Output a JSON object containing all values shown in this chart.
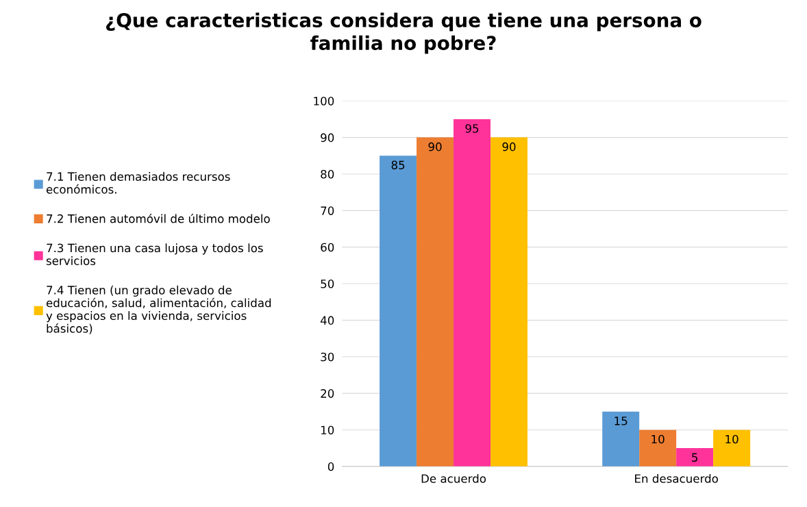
{
  "chart_data": {
    "type": "bar",
    "title": "¿Que caracteristicas considera que tiene una persona o familia no pobre?",
    "categories": [
      "De acuerdo",
      "En desacuerdo"
    ],
    "series": [
      {
        "name": "7.1 Tienen demasiados recursos económicos.",
        "color": "#5b9bd5",
        "values": [
          85,
          15
        ]
      },
      {
        "name": "7.2 Tienen automóvil de último modelo",
        "color": "#ed7d31",
        "values": [
          90,
          10
        ]
      },
      {
        "name": "7.3 Tienen una casa lujosa y todos los servicios",
        "color": "#ff3399",
        "values": [
          95,
          5
        ]
      },
      {
        "name": "7.4 Tienen (un grado elevado de educación, salud, alimentación, calidad y espacios en la vivienda, servicios básicos)",
        "color": "#ffc000",
        "values": [
          90,
          10
        ]
      }
    ],
    "ylim": [
      0,
      100
    ],
    "yticks": [
      0,
      10,
      20,
      30,
      40,
      50,
      60,
      70,
      80,
      90,
      100
    ],
    "grid": "y",
    "legend": "left",
    "data_labels": true
  }
}
